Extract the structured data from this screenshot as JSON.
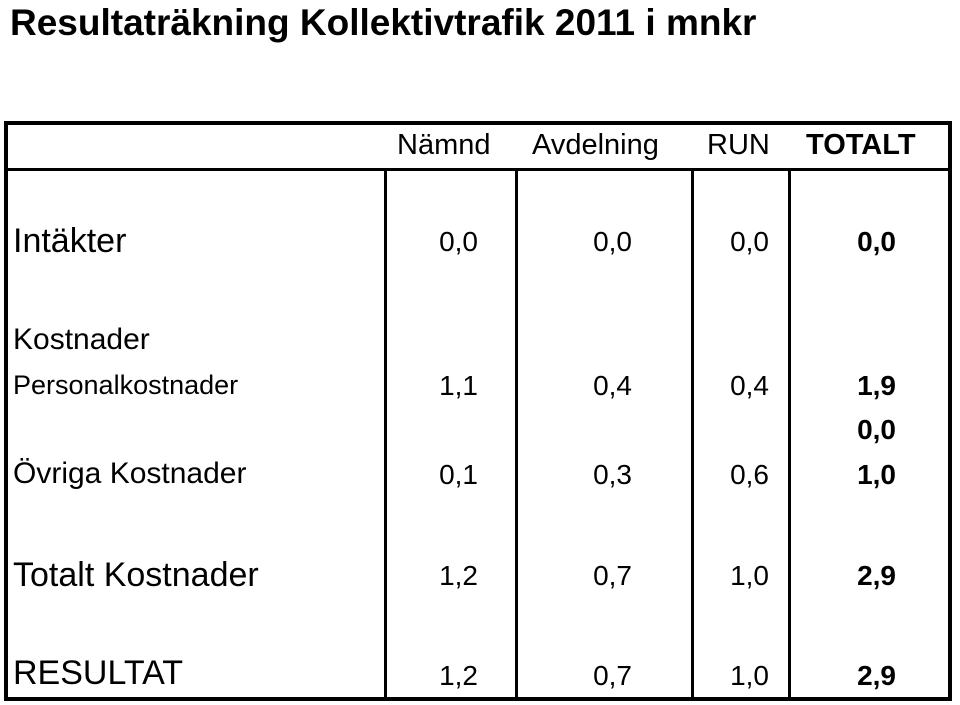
{
  "title": "Resultaträkning Kollektivtrafik 2011 i mnkr",
  "columns": [
    "Nämnd",
    "Avdelning",
    "RUN",
    "TOTALT"
  ],
  "rows": {
    "intakter": {
      "label": "Intäkter",
      "values": [
        "0,0",
        "0,0",
        "0,0",
        "0,0"
      ]
    },
    "kostnader_heading": {
      "label": "Kostnader"
    },
    "personal": {
      "label": "Personalkostnader",
      "values": [
        "1,1",
        "0,4",
        "0,4",
        "1,9"
      ]
    },
    "blank_total": {
      "values": [
        "",
        "",
        "",
        "0,0"
      ]
    },
    "ovriga": {
      "label": "Övriga Kostnader",
      "values": [
        "0,1",
        "0,3",
        "0,6",
        "1,0"
      ]
    },
    "totalt_kostnader": {
      "label": "Totalt Kostnader",
      "values": [
        "1,2",
        "0,7",
        "1,0",
        "2,9"
      ]
    },
    "resultat": {
      "label": "RESULTAT",
      "values": [
        "1,2",
        "0,7",
        "1,0",
        "2,9"
      ]
    }
  }
}
